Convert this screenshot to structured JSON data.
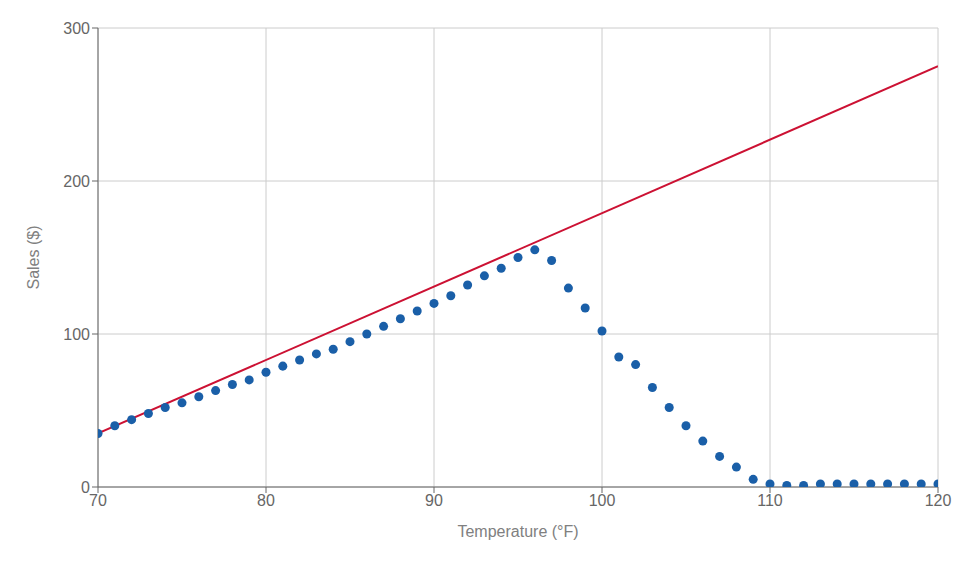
{
  "chart_data": {
    "type": "scatter",
    "xlabel": "Temperature (°F)",
    "ylabel": "Sales ($)",
    "xlim": [
      70,
      120
    ],
    "ylim": [
      0,
      300
    ],
    "xticks": [
      70,
      80,
      90,
      100,
      110,
      120
    ],
    "yticks": [
      0,
      100,
      200,
      300
    ],
    "grid": true,
    "series": [
      {
        "type": "line",
        "color": "#cc1133",
        "x": [
          70,
          120
        ],
        "values": [
          35,
          275
        ]
      },
      {
        "type": "scatter",
        "color": "#1a5fa8",
        "x": [
          70,
          71,
          72,
          73,
          74,
          75,
          76,
          77,
          78,
          79,
          80,
          81,
          82,
          83,
          84,
          85,
          86,
          87,
          88,
          89,
          90,
          91,
          92,
          93,
          94,
          95,
          96,
          97,
          98,
          99,
          100,
          101,
          102,
          103,
          104,
          105,
          106,
          107,
          108,
          109,
          110,
          111,
          112,
          113,
          114,
          115,
          116,
          117,
          118,
          119,
          120
        ],
        "values": [
          35,
          40,
          44,
          48,
          52,
          55,
          59,
          63,
          67,
          70,
          75,
          79,
          83,
          87,
          90,
          95,
          100,
          105,
          110,
          115,
          120,
          125,
          132,
          138,
          143,
          150,
          155,
          148,
          130,
          117,
          102,
          85,
          80,
          65,
          52,
          40,
          30,
          20,
          13,
          5,
          2,
          1,
          1,
          2,
          2,
          2,
          2,
          2,
          2,
          2,
          2
        ]
      }
    ]
  }
}
